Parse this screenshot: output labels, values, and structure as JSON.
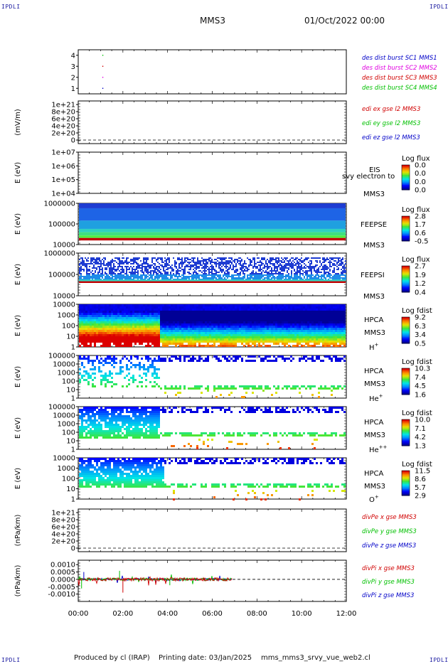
{
  "corner_label": "IPDLI",
  "header": {
    "spacecraft": "MMS3",
    "date": "01/Oct/2022 00:00"
  },
  "footer": {
    "producer": "Produced by cl (IRAP)",
    "printing": "Printing date: 03/Jan/2025",
    "file": "mms_mms3_srvy_vue_web2.cl"
  },
  "colors": {
    "red": "#d00000",
    "magenta": "#e000e0",
    "green": "#00c000",
    "blue": "#0000c8",
    "frame": "#000000",
    "dash": "#000000"
  },
  "chart_data": [
    {
      "id": "dist-burst",
      "type": "scatter",
      "ylabel": "",
      "ylim": [
        0.5,
        4.5
      ],
      "yticks": [
        "4",
        "3",
        "2",
        "1"
      ],
      "ytick_values": [
        4,
        3,
        2,
        1
      ],
      "x_hours": [
        0,
        12
      ],
      "series": [
        {
          "name": "des dist burst SC1 MMS1",
          "color": "#0000c8",
          "points": [
            [
              1.1,
              1
            ]
          ]
        },
        {
          "name": "des dist burst SC2 MMS2",
          "color": "#e000e0",
          "points": [
            [
              1.1,
              2
            ]
          ]
        },
        {
          "name": "des dist burst SC3 MMS3",
          "color": "#d00000",
          "points": [
            [
              1.1,
              3
            ]
          ]
        },
        {
          "name": "des dist burst SC4 MMS4",
          "color": "#00c000",
          "points": [
            [
              1.1,
              4
            ]
          ]
        }
      ]
    },
    {
      "id": "edi-e",
      "type": "line",
      "ylabel": "(mV/m)",
      "ylim": [
        -1e+20,
        1.1e+21
      ],
      "yticks": [
        "1e+21",
        "8e+20",
        "6e+20",
        "4e+20",
        "2e+20",
        "0"
      ],
      "ytick_values": [
        1e+21,
        8e+20,
        6e+20,
        4e+20,
        2e+20,
        0
      ],
      "zero_line": true,
      "series": [
        {
          "name": "edi ex gse l2 MMS3",
          "color": "#d00000"
        },
        {
          "name": "edi ey gse l2 MMS3",
          "color": "#00c000"
        },
        {
          "name": "edi ez gse l2 MMS3",
          "color": "#0000c8"
        }
      ]
    },
    {
      "id": "eis",
      "type": "heatmap",
      "ylabel": "E (eV)",
      "log_y": true,
      "yticks": [
        "1e+07",
        "1e+06",
        "1e+05",
        "1e+04"
      ],
      "instrument": "EIS",
      "sc": "MMS3",
      "overlay": "svy electron to",
      "colorbar_title": "Log flux",
      "colorbar_ticks": [
        "0.0",
        "0.0",
        "0.0",
        "0.0"
      ],
      "data": "none"
    },
    {
      "id": "feeps-e",
      "type": "heatmap",
      "ylabel": "E (eV)",
      "log_y": true,
      "yticks": [
        "1000000",
        "100000",
        "10000"
      ],
      "instrument": "FEEPSE",
      "sc": "MMS3",
      "colorbar_title": "Log flux",
      "colorbar_ticks": [
        "2.8",
        "1.7",
        "0.6",
        "-0.5"
      ],
      "bands": [
        {
          "rel_top": 0.0,
          "rel_bot": 0.12,
          "color": "#1e3cd2"
        },
        {
          "rel_top": 0.12,
          "rel_bot": 0.42,
          "color": "#1e64e6"
        },
        {
          "rel_top": 0.42,
          "rel_bot": 0.62,
          "color": "#1fa0e0"
        },
        {
          "rel_top": 0.62,
          "rel_bot": 0.7,
          "color": "#2fd2c0"
        },
        {
          "rel_top": 0.7,
          "rel_bot": 0.78,
          "color": "#40e080"
        },
        {
          "rel_top": 0.78,
          "rel_bot": 0.84,
          "color": "#50ee40"
        },
        {
          "rel_top": 0.84,
          "rel_bot": 0.9,
          "color": "#c00000"
        }
      ]
    },
    {
      "id": "feeps-i",
      "type": "heatmap",
      "ylabel": "E (eV)",
      "log_y": true,
      "yticks": [
        "1000000",
        "100000",
        "10000"
      ],
      "instrument": "FEEPSI",
      "sc": "MMS3",
      "colorbar_title": "Log flux",
      "colorbar_ticks": [
        "2.7",
        "1.9",
        "1.2",
        "0.4"
      ],
      "bands": [
        {
          "rel_top": 0.1,
          "rel_bot": 0.5,
          "color": "#1e3cd2",
          "speckle": 0.45
        },
        {
          "rel_top": 0.5,
          "rel_bot": 0.62,
          "color": "#1e8ce8",
          "speckle": 0.2
        },
        {
          "rel_top": 0.62,
          "rel_bot": 0.66,
          "color": "#2fd2c0"
        },
        {
          "rel_top": 0.66,
          "rel_bot": 0.7,
          "color": "#c00000"
        }
      ]
    },
    {
      "id": "hpca-h",
      "type": "heatmap",
      "ylabel": "E (eV)",
      "log_y": true,
      "yticks": [
        "10000",
        "1000",
        "100",
        "10",
        "1"
      ],
      "instrument": "HPCA",
      "sc": "MMS3",
      "species": "H+",
      "colorbar_title": "Log fdist",
      "colorbar_ticks": [
        "9.2",
        "6.3",
        "3.4",
        "0.5"
      ]
    },
    {
      "id": "hpca-he",
      "type": "heatmap",
      "ylabel": "E (eV)",
      "log_y": true,
      "yticks": [
        "100000",
        "10000",
        "1000",
        "100",
        "10",
        "1"
      ],
      "instrument": "HPCA",
      "sc": "MMS3",
      "species": "He+",
      "colorbar_title": "Log fdist",
      "colorbar_ticks": [
        "10.3",
        "7.4",
        "4.5",
        "1.6"
      ]
    },
    {
      "id": "hpca-hepp",
      "type": "heatmap",
      "ylabel": "E (eV)",
      "log_y": true,
      "yticks": [
        "100000",
        "10000",
        "1000",
        "100",
        "10",
        "1"
      ],
      "instrument": "HPCA",
      "sc": "MMS3",
      "species": "He++",
      "colorbar_title": "Log fdist",
      "colorbar_ticks": [
        "10.0",
        "7.1",
        "4.2",
        "1.3"
      ]
    },
    {
      "id": "hpca-o",
      "type": "heatmap",
      "ylabel": "E (eV)",
      "log_y": true,
      "yticks": [
        "10000",
        "1000",
        "100",
        "10",
        "1"
      ],
      "instrument": "HPCA",
      "sc": "MMS3",
      "species": "O+",
      "colorbar_title": "Log fdist",
      "colorbar_ticks": [
        "11.5",
        "8.6",
        "5.7",
        "2.9"
      ]
    },
    {
      "id": "divpe",
      "type": "line",
      "ylabel": "(nPa/km)",
      "ylim": [
        -1e+20,
        1.1e+21
      ],
      "yticks": [
        "1e+21",
        "8e+20",
        "6e+20",
        "4e+20",
        "2e+20",
        "0"
      ],
      "ytick_values": [
        1e+21,
        8e+20,
        6e+20,
        4e+20,
        2e+20,
        0
      ],
      "zero_line": true,
      "series": [
        {
          "name": "divPe x gse MMS3",
          "color": "#d00000"
        },
        {
          "name": "divPe y gse MMS3",
          "color": "#00c000"
        },
        {
          "name": "divPe z gse MMS3",
          "color": "#0000c8"
        }
      ]
    },
    {
      "id": "divpi",
      "type": "line",
      "ylabel": "(nPa/km)",
      "ylim": [
        -0.0015,
        0.0013
      ],
      "yticks": [
        "0.0010",
        "0.0005",
        "0.0000",
        "-0.0005",
        "-0.0010"
      ],
      "ytick_values": [
        0.001,
        0.0005,
        0,
        -0.0005,
        -0.001
      ],
      "zero_line": true,
      "data_end_hour": 6.9,
      "series": [
        {
          "name": "divPi x gse MMS3",
          "color": "#d00000"
        },
        {
          "name": "divPi y gse MMS3",
          "color": "#00c000"
        },
        {
          "name": "divPi z gse MMS3",
          "color": "#0000c8"
        }
      ]
    }
  ],
  "xaxis": {
    "range_hours": [
      0,
      12
    ],
    "ticks": [
      "00:00",
      "02:00",
      "04:00",
      "06:00",
      "08:00",
      "10:00",
      "12:00"
    ],
    "tick_hours": [
      0,
      2,
      4,
      6,
      8,
      10,
      12
    ]
  }
}
